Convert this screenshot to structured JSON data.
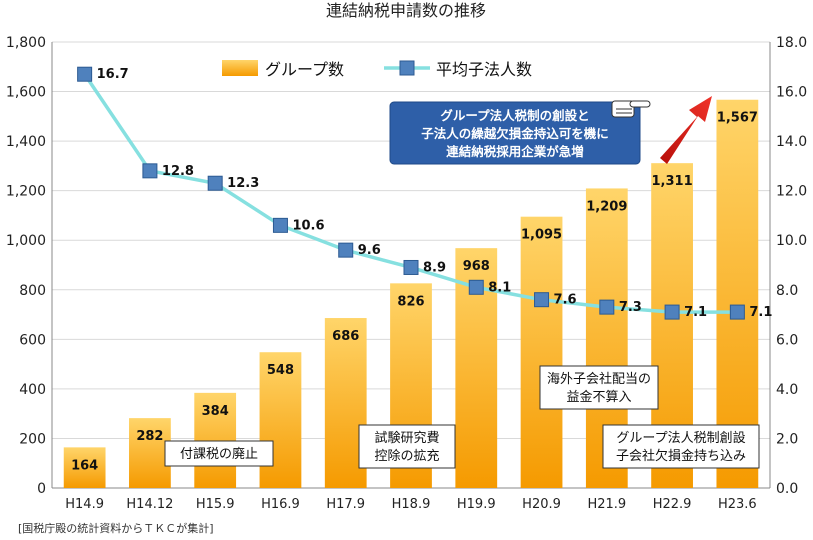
{
  "chart_data": {
    "type": "bar",
    "title": "連結納税申請数の推移",
    "categories": [
      "H14.9",
      "H14.12",
      "H15.9",
      "H16.9",
      "H17.9",
      "H18.9",
      "H19.9",
      "H20.9",
      "H21.9",
      "H22.9",
      "H23.6"
    ],
    "series": [
      {
        "name": "グループ数",
        "type": "bar",
        "axis": "left",
        "values": [
          164,
          282,
          384,
          548,
          686,
          826,
          968,
          1095,
          1209,
          1311,
          1567
        ],
        "labels": [
          "164",
          "282",
          "384",
          "548",
          "686",
          "826",
          "968",
          "1,095",
          "1,209",
          "1,311",
          "1,567"
        ]
      },
      {
        "name": "平均子法人数",
        "type": "line",
        "axis": "right",
        "values": [
          16.7,
          12.8,
          12.3,
          10.6,
          9.6,
          8.9,
          8.1,
          7.6,
          7.3,
          7.1,
          7.1
        ],
        "labels": [
          "16.7",
          "12.8",
          "12.3",
          "10.6",
          "9.6",
          "8.9",
          "8.1",
          "7.6",
          "7.3",
          "7.1",
          "7.1"
        ]
      }
    ],
    "ylim_left": [
      0,
      1800
    ],
    "ylim_right": [
      0,
      18
    ],
    "left_ticks": [
      "0",
      "200",
      "400",
      "600",
      "800",
      "1,000",
      "1,200",
      "1,400",
      "1,600",
      "1,800"
    ],
    "right_ticks": [
      "0.0",
      "2.0",
      "4.0",
      "6.0",
      "8.0",
      "10.0",
      "12.0",
      "14.0",
      "16.0",
      "18.0"
    ],
    "grid": true,
    "legend_position": "top-center",
    "annotations": [
      {
        "lines": [
          "付課税の廃止"
        ],
        "category": "H15.9"
      },
      {
        "lines": [
          "試験研究費",
          "控除の拡充"
        ],
        "category": "H18.9"
      },
      {
        "lines": [
          "海外子会社配当の",
          "益金不算入"
        ],
        "category": "H21.9"
      },
      {
        "lines": [
          "グループ法人税制創設",
          "子会社欠損金持ち込み"
        ],
        "category": "H22.9"
      },
      {
        "lines": [
          "グループ法人税制の創設と",
          "子法人の繰越欠損金持込可を機に",
          "連結納税採用企業が急増"
        ],
        "category": "H22.9",
        "style": "callout"
      }
    ],
    "colors": {
      "bar_top": "#ffd56a",
      "bar_bottom": "#f59a00",
      "line": "#86e0e0",
      "marker": "#4f81bd",
      "callout_bg": "#2e5fa8",
      "arrow": "#e0201a"
    }
  },
  "footer": {
    "source": "[国税庁殿の統計資料からＴＫＣが集計]"
  }
}
